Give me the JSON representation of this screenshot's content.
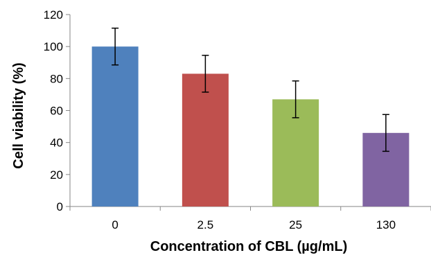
{
  "chart_data": {
    "type": "bar",
    "title": "",
    "xlabel": "Concentration of CBL (µg/mL)",
    "ylabel": "Cell viability (%)",
    "categories": [
      "0",
      "2.5",
      "25",
      "130"
    ],
    "values": [
      100,
      83,
      67,
      46
    ],
    "error": [
      11.5,
      11.5,
      11.5,
      11.5
    ],
    "colors": [
      "#4F81BD",
      "#C0504D",
      "#9BBB59",
      "#8064A2"
    ],
    "ylim": [
      0,
      120
    ],
    "yticks": [
      "0",
      "20",
      "40",
      "60",
      "80",
      "100",
      "120"
    ],
    "grid": false,
    "legend": "none"
  }
}
